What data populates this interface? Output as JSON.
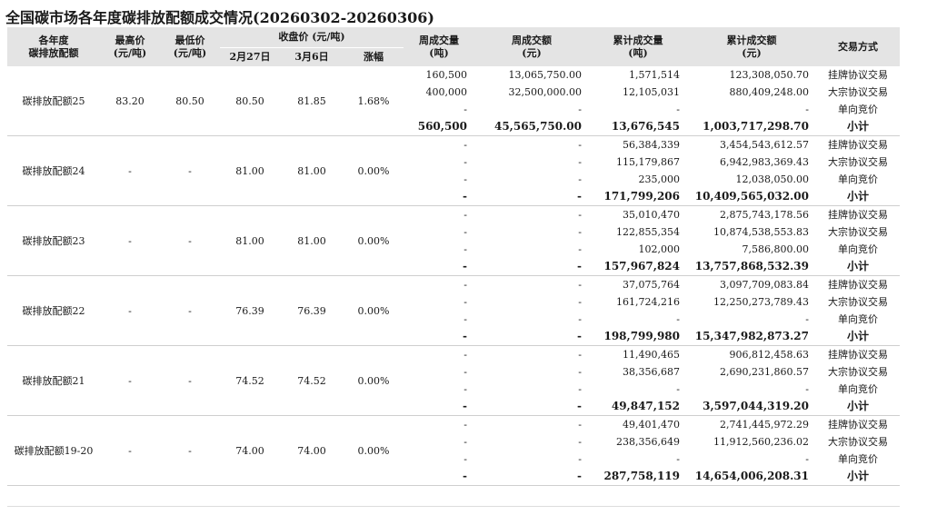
{
  "title": "全国碳市场各年度碳排放配额成交情况(20260302-20260306)",
  "headers": {
    "product": "各年度\n碳排放配额",
    "high": "最高价\n(元/吨)",
    "low": "最低价\n(元/吨)",
    "close_group": "收盘价 (元/吨)",
    "close_prev": "2月27日",
    "close_curr": "3月6日",
    "change": "涨幅",
    "week_vol": "周成交量\n(吨)",
    "week_amt": "周成交额\n(元)",
    "cum_vol": "累计成交量\n(吨)",
    "cum_amt": "累计成交额\n(元)",
    "mode": "交易方式"
  },
  "groups": [
    {
      "name": "碳排放配额25",
      "high": "83.20",
      "low": "80.50",
      "close_prev": "80.50",
      "close_curr": "81.85",
      "change": "1.68%",
      "rows": [
        {
          "week_vol": "160,500",
          "week_amt": "13,065,750.00",
          "cum_vol": "1,571,514",
          "cum_amt": "123,308,050.70",
          "mode": "挂牌协议交易"
        },
        {
          "week_vol": "400,000",
          "week_amt": "32,500,000.00",
          "cum_vol": "12,105,031",
          "cum_amt": "880,409,248.00",
          "mode": "大宗协议交易"
        },
        {
          "week_vol": "-",
          "week_amt": "-",
          "cum_vol": "-",
          "cum_amt": "-",
          "mode": "单向竞价"
        },
        {
          "week_vol": "560,500",
          "week_amt": "45,565,750.00",
          "cum_vol": "13,676,545",
          "cum_amt": "1,003,717,298.70",
          "mode": "小计"
        }
      ]
    },
    {
      "name": "碳排放配额24",
      "high": "-",
      "low": "-",
      "close_prev": "81.00",
      "close_curr": "81.00",
      "change": "0.00%",
      "rows": [
        {
          "week_vol": "-",
          "week_amt": "-",
          "cum_vol": "56,384,339",
          "cum_amt": "3,454,543,612.57",
          "mode": "挂牌协议交易"
        },
        {
          "week_vol": "-",
          "week_amt": "-",
          "cum_vol": "115,179,867",
          "cum_amt": "6,942,983,369.43",
          "mode": "大宗协议交易"
        },
        {
          "week_vol": "-",
          "week_amt": "-",
          "cum_vol": "235,000",
          "cum_amt": "12,038,050.00",
          "mode": "单向竞价"
        },
        {
          "week_vol": "-",
          "week_amt": "-",
          "cum_vol": "171,799,206",
          "cum_amt": "10,409,565,032.00",
          "mode": "小计"
        }
      ]
    },
    {
      "name": "碳排放配额23",
      "high": "-",
      "low": "-",
      "close_prev": "81.00",
      "close_curr": "81.00",
      "change": "0.00%",
      "rows": [
        {
          "week_vol": "-",
          "week_amt": "-",
          "cum_vol": "35,010,470",
          "cum_amt": "2,875,743,178.56",
          "mode": "挂牌协议交易"
        },
        {
          "week_vol": "-",
          "week_amt": "-",
          "cum_vol": "122,855,354",
          "cum_amt": "10,874,538,553.83",
          "mode": "大宗协议交易"
        },
        {
          "week_vol": "-",
          "week_amt": "-",
          "cum_vol": "102,000",
          "cum_amt": "7,586,800.00",
          "mode": "单向竞价"
        },
        {
          "week_vol": "-",
          "week_amt": "-",
          "cum_vol": "157,967,824",
          "cum_amt": "13,757,868,532.39",
          "mode": "小计"
        }
      ]
    },
    {
      "name": "碳排放配额22",
      "high": "-",
      "low": "-",
      "close_prev": "76.39",
      "close_curr": "76.39",
      "change": "0.00%",
      "rows": [
        {
          "week_vol": "-",
          "week_amt": "-",
          "cum_vol": "37,075,764",
          "cum_amt": "3,097,709,083.84",
          "mode": "挂牌协议交易"
        },
        {
          "week_vol": "-",
          "week_amt": "-",
          "cum_vol": "161,724,216",
          "cum_amt": "12,250,273,789.43",
          "mode": "大宗协议交易"
        },
        {
          "week_vol": "-",
          "week_amt": "-",
          "cum_vol": "-",
          "cum_amt": "-",
          "mode": "单向竞价"
        },
        {
          "week_vol": "-",
          "week_amt": "-",
          "cum_vol": "198,799,980",
          "cum_amt": "15,347,982,873.27",
          "mode": "小计"
        }
      ]
    },
    {
      "name": "碳排放配额21",
      "high": "-",
      "low": "-",
      "close_prev": "74.52",
      "close_curr": "74.52",
      "change": "0.00%",
      "rows": [
        {
          "week_vol": "-",
          "week_amt": "-",
          "cum_vol": "11,490,465",
          "cum_amt": "906,812,458.63",
          "mode": "挂牌协议交易"
        },
        {
          "week_vol": "-",
          "week_amt": "-",
          "cum_vol": "38,356,687",
          "cum_amt": "2,690,231,860.57",
          "mode": "大宗协议交易"
        },
        {
          "week_vol": "-",
          "week_amt": "-",
          "cum_vol": "-",
          "cum_amt": "-",
          "mode": "单向竞价"
        },
        {
          "week_vol": "-",
          "week_amt": "-",
          "cum_vol": "49,847,152",
          "cum_amt": "3,597,044,319.20",
          "mode": "小计"
        }
      ]
    },
    {
      "name": "碳排放配额19-20",
      "high": "-",
      "low": "-",
      "close_prev": "74.00",
      "close_curr": "74.00",
      "change": "0.00%",
      "rows": [
        {
          "week_vol": "-",
          "week_amt": "-",
          "cum_vol": "49,401,470",
          "cum_amt": "2,741,445,972.29",
          "mode": "挂牌协议交易"
        },
        {
          "week_vol": "-",
          "week_amt": "-",
          "cum_vol": "238,356,649",
          "cum_amt": "11,912,560,236.02",
          "mode": "大宗协议交易"
        },
        {
          "week_vol": "-",
          "week_amt": "-",
          "cum_vol": "-",
          "cum_amt": "-",
          "mode": "单向竞价"
        },
        {
          "week_vol": "-",
          "week_amt": "-",
          "cum_vol": "287,758,119",
          "cum_amt": "14,654,006,208.31",
          "mode": "小计"
        }
      ]
    }
  ]
}
